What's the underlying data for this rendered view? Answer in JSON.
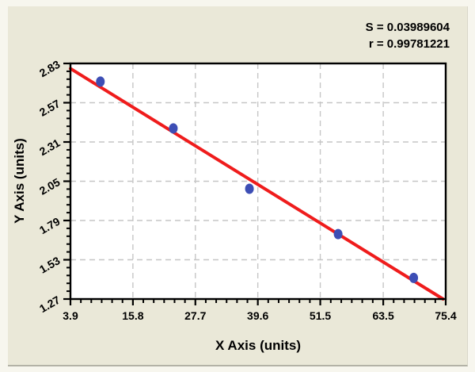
{
  "chart_data": {
    "type": "scatter",
    "title": "",
    "xlabel": "X Axis (units)",
    "ylabel": "Y Axis (units)",
    "xlim": [
      3.9,
      75.4
    ],
    "ylim": [
      1.27,
      2.83
    ],
    "x_ticks": [
      3.9,
      15.8,
      27.7,
      39.6,
      51.5,
      63.5,
      75.4
    ],
    "y_ticks": [
      1.27,
      1.53,
      1.79,
      2.05,
      2.31,
      2.57,
      2.83
    ],
    "x_minor_divisions": 6,
    "y_minor_divisions": 5,
    "grid": "dashed",
    "legend": "none",
    "points": [
      {
        "x": 9.6,
        "y": 2.71
      },
      {
        "x": 23.5,
        "y": 2.4
      },
      {
        "x": 38.0,
        "y": 2.0
      },
      {
        "x": 54.9,
        "y": 1.7
      },
      {
        "x": 69.3,
        "y": 1.41
      }
    ],
    "fit_line": {
      "x1": 3.9,
      "y1": 2.796,
      "x2": 74.9,
      "y2": 1.27
    },
    "annotations": [
      "S = 0.03989604",
      "r = 0.99781221"
    ],
    "colors": {
      "point": "#3d4eb5",
      "fit_line": "#ef1c1c",
      "grid": "#c6c6c6",
      "axis": "#000000",
      "plot_bg": "#ffffff",
      "panel_bg": "#eae8d8",
      "text": "#000000"
    }
  }
}
